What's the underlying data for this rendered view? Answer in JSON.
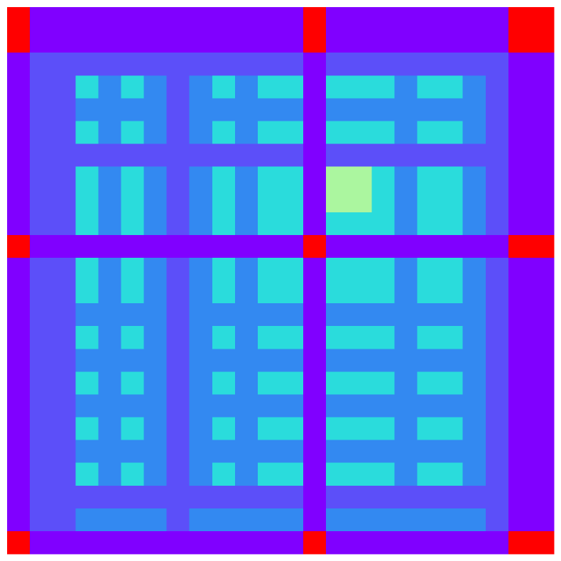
{
  "chart_data": {
    "type": "heatmap",
    "colors": [
      "#8000ff",
      "#5c4ff9",
      "#3389f1",
      "#2adcdc",
      "#abf69f",
      "#ff0000"
    ],
    "values": [
      [
        5,
        0,
        0,
        0,
        0,
        0,
        0,
        0,
        0,
        0,
        0,
        0,
        0,
        5,
        0,
        0,
        0,
        0,
        0,
        0,
        0,
        0,
        5,
        5
      ],
      [
        5,
        0,
        0,
        0,
        0,
        0,
        0,
        0,
        0,
        0,
        0,
        0,
        0,
        5,
        0,
        0,
        0,
        0,
        0,
        0,
        0,
        0,
        5,
        5
      ],
      [
        0,
        1,
        1,
        1,
        1,
        1,
        1,
        1,
        1,
        1,
        1,
        1,
        1,
        0,
        1,
        1,
        1,
        1,
        1,
        1,
        1,
        1,
        0,
        0
      ],
      [
        0,
        1,
        1,
        3,
        2,
        3,
        2,
        1,
        2,
        3,
        2,
        3,
        3,
        0,
        3,
        3,
        3,
        2,
        3,
        3,
        2,
        1,
        0,
        0
      ],
      [
        0,
        1,
        1,
        2,
        2,
        2,
        2,
        1,
        2,
        2,
        2,
        2,
        2,
        0,
        2,
        2,
        2,
        2,
        2,
        2,
        2,
        1,
        0,
        0
      ],
      [
        0,
        1,
        1,
        3,
        2,
        3,
        2,
        1,
        2,
        3,
        2,
        3,
        3,
        0,
        3,
        3,
        3,
        2,
        3,
        3,
        2,
        1,
        0,
        0
      ],
      [
        0,
        1,
        1,
        1,
        1,
        1,
        1,
        1,
        1,
        1,
        1,
        1,
        1,
        0,
        1,
        1,
        1,
        1,
        1,
        1,
        1,
        1,
        0,
        0
      ],
      [
        0,
        1,
        1,
        3,
        2,
        3,
        2,
        1,
        2,
        3,
        2,
        3,
        3,
        0,
        4,
        4,
        3,
        2,
        3,
        3,
        2,
        1,
        0,
        0
      ],
      [
        0,
        1,
        1,
        3,
        2,
        3,
        2,
        1,
        2,
        3,
        2,
        3,
        3,
        0,
        4,
        4,
        3,
        2,
        3,
        3,
        2,
        1,
        0,
        0
      ],
      [
        0,
        1,
        1,
        3,
        2,
        3,
        2,
        1,
        2,
        3,
        2,
        3,
        3,
        0,
        3,
        3,
        3,
        2,
        3,
        3,
        2,
        1,
        0,
        0
      ],
      [
        5,
        0,
        0,
        0,
        0,
        0,
        0,
        0,
        0,
        0,
        0,
        0,
        0,
        5,
        0,
        0,
        0,
        0,
        0,
        0,
        0,
        0,
        5,
        5
      ],
      [
        0,
        1,
        1,
        3,
        2,
        3,
        2,
        1,
        2,
        3,
        2,
        3,
        3,
        0,
        3,
        3,
        3,
        2,
        3,
        3,
        2,
        1,
        0,
        0
      ],
      [
        0,
        1,
        1,
        3,
        2,
        3,
        2,
        1,
        2,
        3,
        2,
        3,
        3,
        0,
        3,
        3,
        3,
        2,
        3,
        3,
        2,
        1,
        0,
        0
      ],
      [
        0,
        1,
        1,
        2,
        2,
        2,
        2,
        1,
        2,
        2,
        2,
        2,
        2,
        0,
        2,
        2,
        2,
        2,
        2,
        2,
        2,
        1,
        0,
        0
      ],
      [
        0,
        1,
        1,
        3,
        2,
        3,
        2,
        1,
        2,
        3,
        2,
        3,
        3,
        0,
        3,
        3,
        3,
        2,
        3,
        3,
        2,
        1,
        0,
        0
      ],
      [
        0,
        1,
        1,
        2,
        2,
        2,
        2,
        1,
        2,
        2,
        2,
        2,
        2,
        0,
        2,
        2,
        2,
        2,
        2,
        2,
        2,
        1,
        0,
        0
      ],
      [
        0,
        1,
        1,
        3,
        2,
        3,
        2,
        1,
        2,
        3,
        2,
        3,
        3,
        0,
        3,
        3,
        3,
        2,
        3,
        3,
        2,
        1,
        0,
        0
      ],
      [
        0,
        1,
        1,
        2,
        2,
        2,
        2,
        1,
        2,
        2,
        2,
        2,
        2,
        0,
        2,
        2,
        2,
        2,
        2,
        2,
        2,
        1,
        0,
        0
      ],
      [
        0,
        1,
        1,
        3,
        2,
        3,
        2,
        1,
        2,
        3,
        2,
        3,
        3,
        0,
        3,
        3,
        3,
        2,
        3,
        3,
        2,
        1,
        0,
        0
      ],
      [
        0,
        1,
        1,
        2,
        2,
        2,
        2,
        1,
        2,
        2,
        2,
        2,
        2,
        0,
        2,
        2,
        2,
        2,
        2,
        2,
        2,
        1,
        0,
        0
      ],
      [
        0,
        1,
        1,
        3,
        2,
        3,
        2,
        1,
        2,
        3,
        2,
        3,
        3,
        0,
        3,
        3,
        3,
        2,
        3,
        3,
        2,
        1,
        0,
        0
      ],
      [
        0,
        1,
        1,
        1,
        1,
        1,
        1,
        1,
        1,
        1,
        1,
        1,
        1,
        0,
        1,
        1,
        1,
        1,
        1,
        1,
        1,
        1,
        0,
        0
      ],
      [
        0,
        1,
        1,
        2,
        2,
        2,
        2,
        1,
        2,
        2,
        2,
        2,
        2,
        0,
        2,
        2,
        2,
        2,
        2,
        2,
        2,
        1,
        0,
        0
      ],
      [
        5,
        0,
        0,
        0,
        0,
        0,
        0,
        0,
        0,
        0,
        0,
        0,
        0,
        5,
        0,
        0,
        0,
        0,
        0,
        0,
        0,
        0,
        5,
        5
      ]
    ]
  }
}
